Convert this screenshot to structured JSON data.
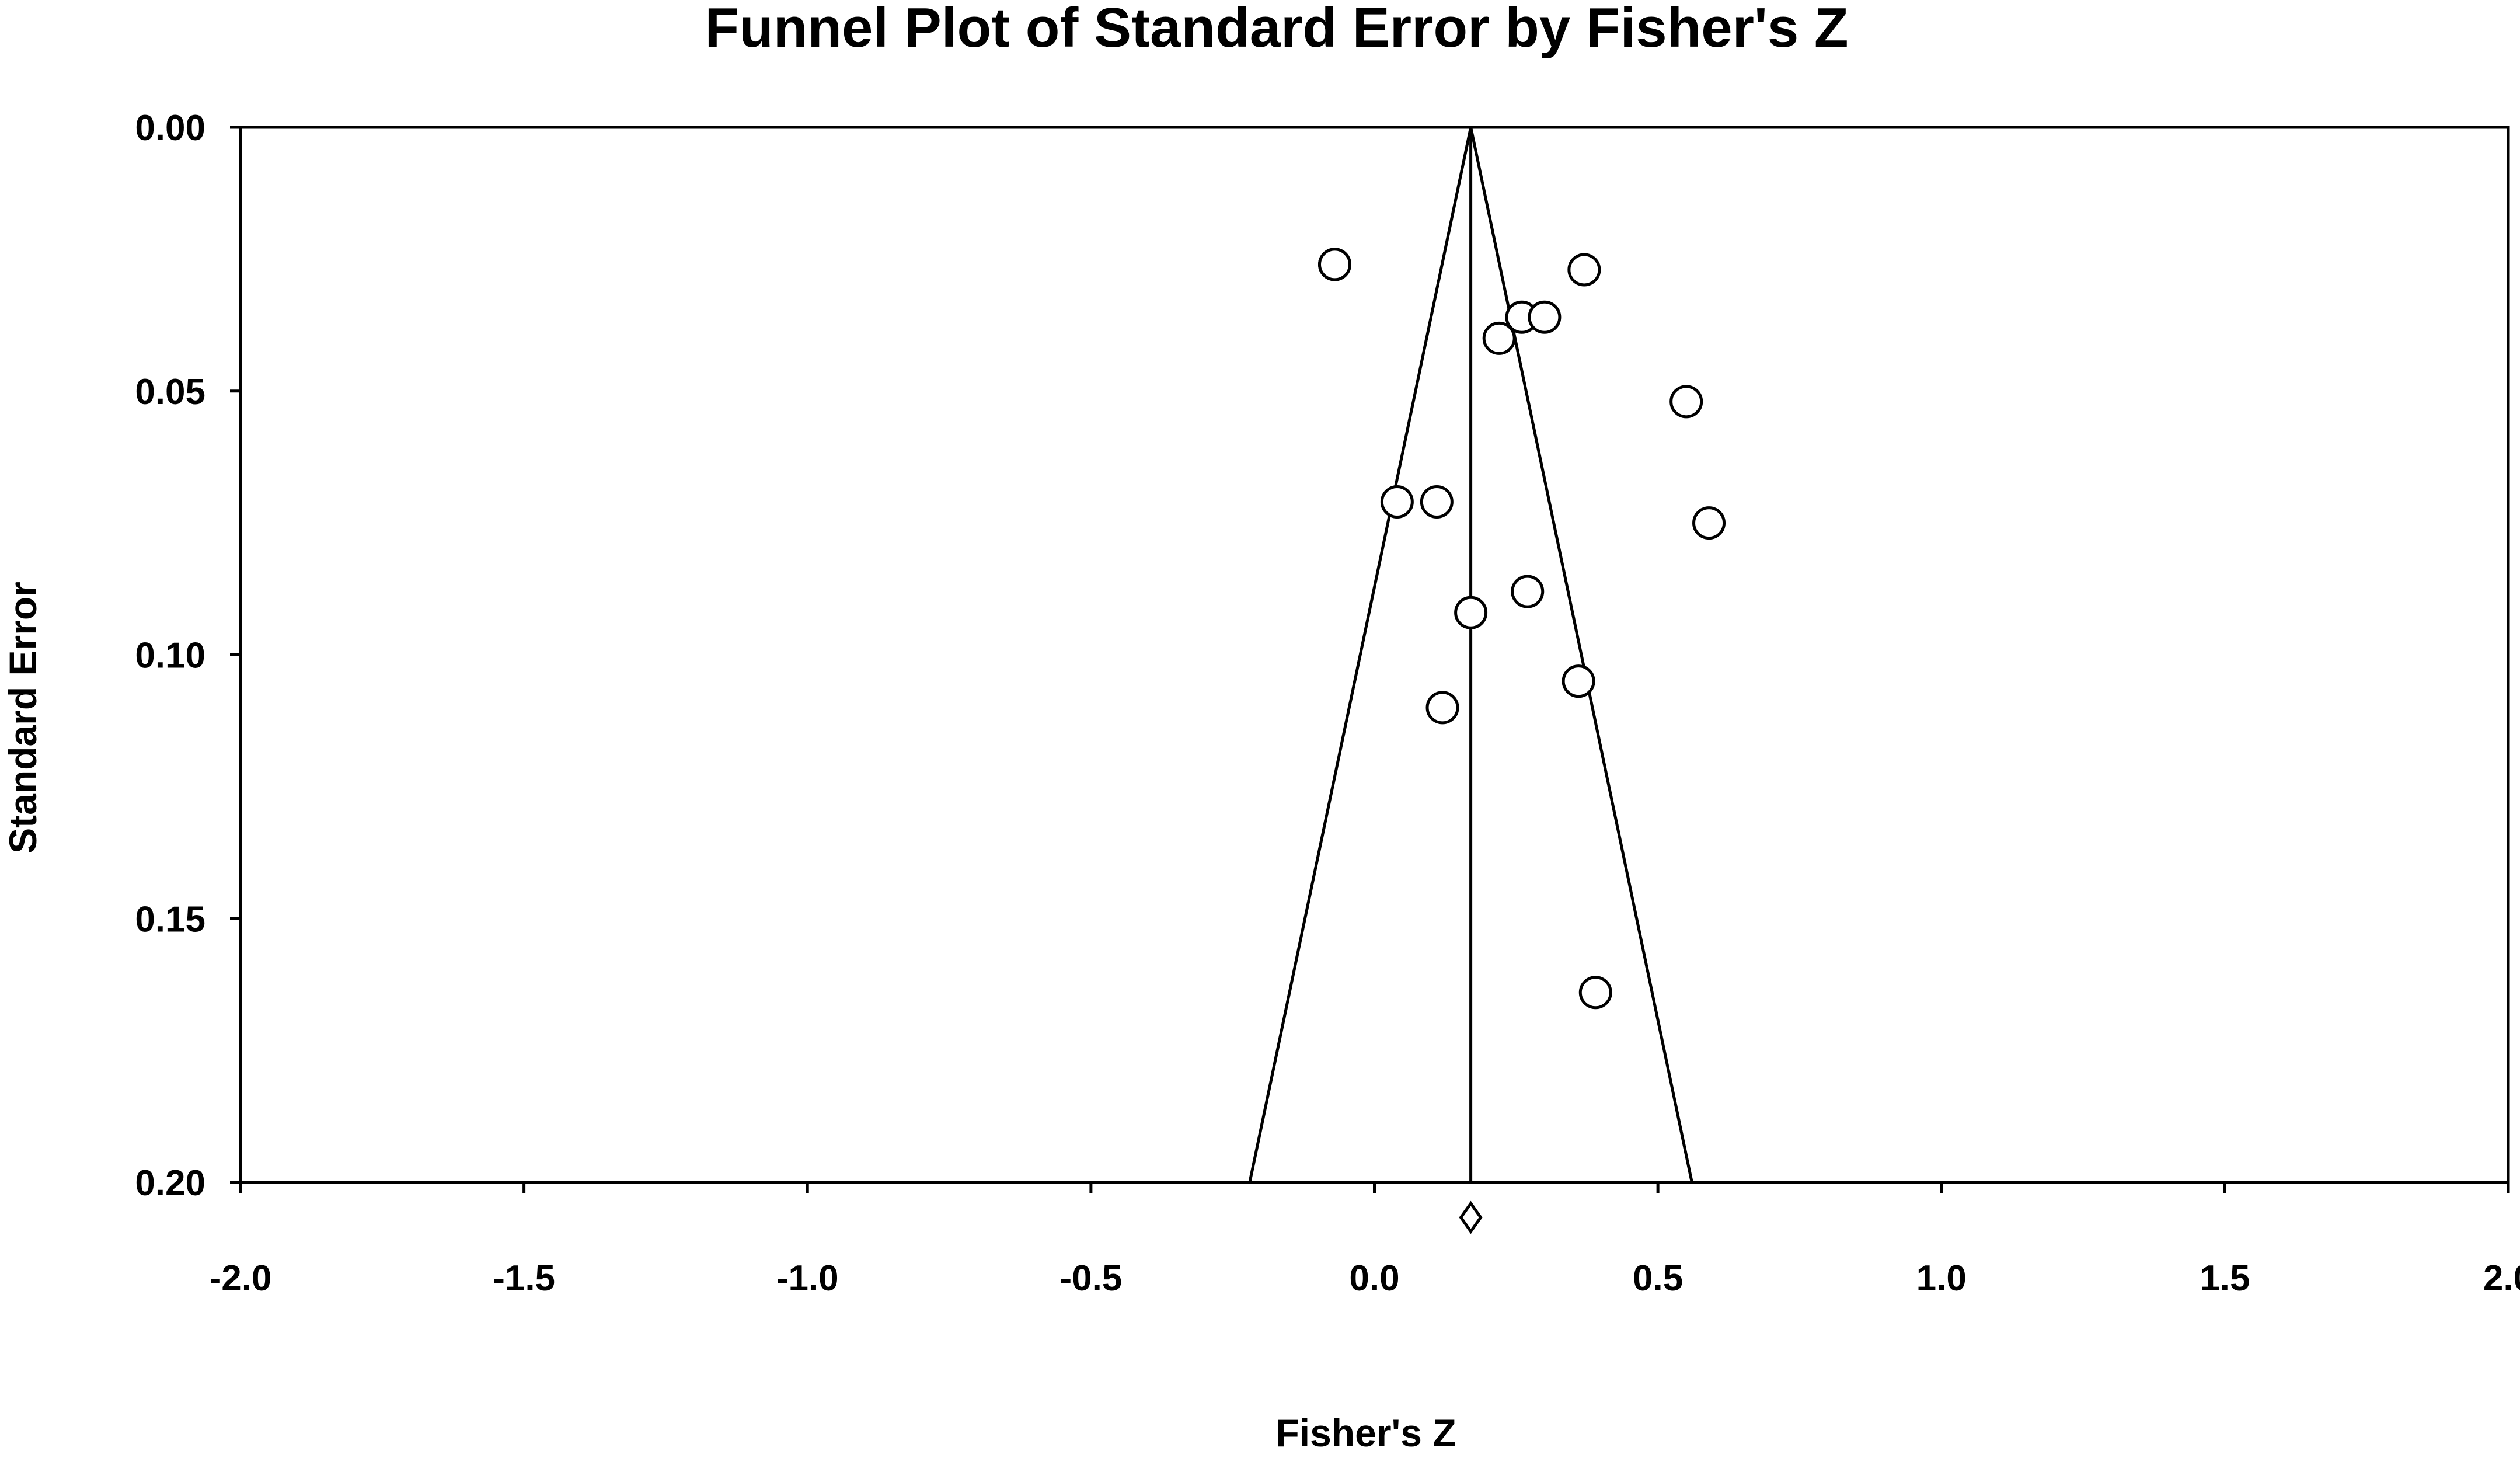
{
  "chart_data": {
    "type": "scatter",
    "title": "Funnel Plot of Standard Error by Fisher's Z",
    "xlabel": "Fisher's Z",
    "ylabel": "Standard Error",
    "xlim": [
      -2.0,
      2.0
    ],
    "ylim": [
      0.0,
      0.2
    ],
    "y_inverted": true,
    "x_ticks": [
      "-2.0",
      "-1.5",
      "-1.0",
      "-0.5",
      "0.0",
      "0.5",
      "1.0",
      "1.5",
      "2.0"
    ],
    "y_ticks": [
      "0.00",
      "0.05",
      "0.10",
      "0.15",
      "0.20"
    ],
    "grid": false,
    "pooled_estimate": 0.17,
    "funnel_bounds_at_max_se": [
      -0.22,
      0.56
    ],
    "points": [
      {
        "x": -0.07,
        "y": 0.026
      },
      {
        "x": -0.07,
        "y": 0.026
      },
      {
        "x": 0.37,
        "y": 0.027
      },
      {
        "x": 0.26,
        "y": 0.036
      },
      {
        "x": 0.3,
        "y": 0.036
      },
      {
        "x": 0.22,
        "y": 0.04
      },
      {
        "x": 0.55,
        "y": 0.052
      },
      {
        "x": 0.04,
        "y": 0.071
      },
      {
        "x": 0.11,
        "y": 0.071
      },
      {
        "x": 0.59,
        "y": 0.075
      },
      {
        "x": 0.27,
        "y": 0.088
      },
      {
        "x": 0.17,
        "y": 0.092
      },
      {
        "x": 0.36,
        "y": 0.105
      },
      {
        "x": 0.12,
        "y": 0.11
      },
      {
        "x": 0.39,
        "y": 0.164
      }
    ],
    "summary_diamond": {
      "x": 0.17
    }
  }
}
